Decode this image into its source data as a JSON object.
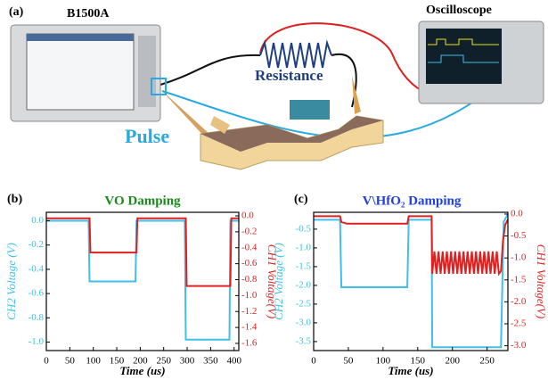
{
  "diagram": {
    "panel_label": "(a)",
    "instrument_left": "B1500A",
    "instrument_right": "Oscilloscope",
    "resistor": "Resistance",
    "signal": "Pulse"
  },
  "chart_data": [
    {
      "type": "line",
      "panel_label": "(b)",
      "title": "VO Damping",
      "title_color": "#1a8a1a",
      "xlabel": "Time (us)",
      "ylabel": "CH2 Voltage (V)",
      "y2label": "CH1 Voltage(V)",
      "xlim": [
        0,
        410
      ],
      "xticks": [
        0,
        50,
        100,
        150,
        200,
        250,
        300,
        350,
        400
      ],
      "ylim": [
        -1.07,
        0.07
      ],
      "yticks": [
        {
          "value": 0,
          "label": "0.0"
        },
        -0.2,
        -0.4,
        -0.6,
        -0.8,
        {
          "value": -1,
          "label": "-1.0"
        }
      ],
      "y2lim": [
        -1.69,
        0.045
      ],
      "y2ticks": [
        {
          "value": 0,
          "label": "0.0"
        },
        -0.2,
        -0.4,
        -0.6,
        -0.8,
        {
          "value": -1,
          "label": "-1.0"
        },
        -1.2,
        -1.4,
        -1.6
      ],
      "series": [
        {
          "color": "#3fbfea",
          "x": [
            0,
            90,
            92,
            190,
            192,
            295,
            297,
            390,
            392,
            410
          ],
          "values": [
            0,
            0,
            -0.5,
            -0.5,
            0,
            0,
            -0.98,
            -0.98,
            0,
            0
          ]
        },
        {
          "color": "#e02020",
          "axis": "y2",
          "x": [
            0,
            92,
            94,
            192,
            194,
            297,
            299,
            392,
            394,
            410
          ],
          "values": [
            -0.03,
            -0.03,
            -0.46,
            -0.46,
            -0.03,
            -0.03,
            -0.88,
            -0.88,
            -0.03,
            -0.03
          ]
        }
      ]
    },
    {
      "type": "line",
      "panel_label": "(c)",
      "title": "V\\HfO₂ Damping",
      "title_color": "#1f3fe0",
      "xlabel": "Time (us)",
      "ylabel": "CH2 Voltage (V)",
      "y2label": "CH1 Voltage(V)",
      "xlim": [
        0,
        280
      ],
      "xticks": [
        0,
        50,
        100,
        150,
        200,
        250
      ],
      "ylim": [
        -3.74,
        -0.05
      ],
      "yticks": [
        -0.5,
        {
          "value": -1,
          "label": "-1.0"
        },
        -1.5,
        {
          "value": -2,
          "label": "-2.0"
        },
        -2.5,
        {
          "value": -3,
          "label": "-3.0"
        },
        -3.5
      ],
      "y2lim": [
        -3.11,
        0.04
      ],
      "y2ticks": [
        {
          "value": 0,
          "label": "0.0"
        },
        -0.5,
        {
          "value": -1,
          "label": "-1.0"
        },
        -1.5,
        {
          "value": -2,
          "label": "-2.0"
        },
        -2.5,
        {
          "value": -3,
          "label": "-3.0"
        }
      ],
      "series": [
        {
          "color": "#3fbfea",
          "x": [
            0,
            38,
            40,
            135,
            137,
            170,
            171,
            270,
            274,
            280
          ],
          "values": [
            -0.25,
            -0.25,
            -2.05,
            -2.05,
            -0.25,
            -0.25,
            -3.65,
            -3.65,
            -0.3,
            -0.1
          ]
        },
        {
          "color": "#e02020",
          "axis": "y2",
          "x": [
            0,
            38,
            40,
            48,
            135,
            137,
            170,
            171,
            174,
            177,
            180,
            183,
            186,
            189,
            192,
            195,
            198,
            201,
            204,
            207,
            210,
            213,
            216,
            219,
            222,
            225,
            228,
            231,
            234,
            237,
            240,
            243,
            246,
            249,
            252,
            255,
            258,
            261,
            264,
            267,
            270,
            273,
            276,
            280
          ],
          "values": [
            -0.05,
            -0.05,
            -0.18,
            -0.22,
            -0.22,
            -0.05,
            -0.05,
            -1.36,
            -0.85,
            -1.36,
            -0.85,
            -1.36,
            -0.85,
            -1.36,
            -0.85,
            -1.36,
            -0.85,
            -1.36,
            -0.85,
            -1.36,
            -0.85,
            -1.36,
            -0.85,
            -1.36,
            -0.85,
            -1.36,
            -0.85,
            -1.36,
            -0.85,
            -1.36,
            -0.85,
            -1.36,
            -0.85,
            -1.36,
            -0.85,
            -1.36,
            -0.85,
            -1.36,
            -0.85,
            -1.36,
            -1.3,
            -0.6,
            -0.25,
            -0.12
          ]
        }
      ]
    }
  ]
}
